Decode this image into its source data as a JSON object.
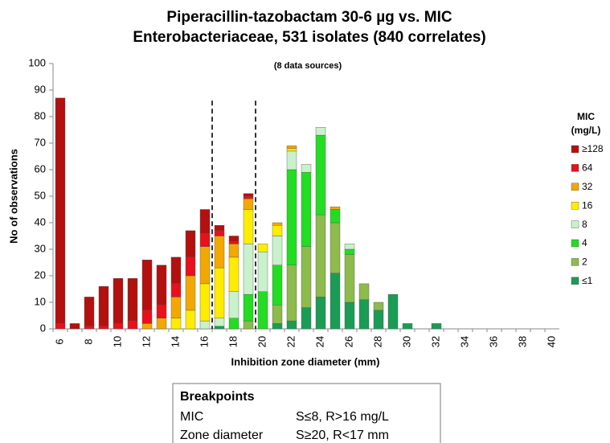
{
  "chart_data": {
    "type": "stacked_bar",
    "title": [
      "Piperacillin-tazobactam 30-6 µg vs. MIC",
      "Enterobacteriaceae, 531 isolates (840 correlates)"
    ],
    "subtitle": "(8 data sources)",
    "x_label": "Inhibition zone diameter (mm)",
    "y_label": "No of observations",
    "legend_title": [
      "MIC",
      "(mg/L)"
    ],
    "categories": [
      6,
      null,
      8,
      null,
      10,
      null,
      12,
      null,
      14,
      null,
      16,
      null,
      18,
      null,
      20,
      null,
      22,
      null,
      24,
      null,
      26,
      null,
      28,
      null,
      30,
      null,
      32,
      null,
      34,
      null,
      36,
      null,
      38,
      null,
      40
    ],
    "series": [
      {
        "name": "≤1",
        "color": "#1a9c55",
        "values": [
          0,
          0,
          0,
          0,
          0,
          0,
          0,
          0,
          0,
          0,
          0,
          1,
          0,
          0,
          0,
          2,
          3,
          8,
          12,
          21,
          10,
          11,
          7,
          13,
          2,
          0,
          2,
          0,
          0,
          0,
          0,
          0,
          0,
          0,
          0
        ]
      },
      {
        "name": "2",
        "color": "#8dbb4c",
        "values": [
          0,
          0,
          0,
          0,
          0,
          0,
          0,
          0,
          0,
          0,
          0,
          0,
          0,
          3,
          0,
          7,
          21,
          23,
          31,
          19,
          18,
          6,
          3,
          0,
          0,
          0,
          0,
          0,
          0,
          0,
          0,
          0,
          0,
          0,
          0
        ]
      },
      {
        "name": "4",
        "color": "#22dd22",
        "values": [
          0,
          0,
          0,
          0,
          0,
          0,
          0,
          0,
          0,
          0,
          0,
          0,
          4,
          10,
          14,
          15,
          36,
          28,
          30,
          5,
          2,
          0,
          0,
          0,
          0,
          0,
          0,
          0,
          0,
          0,
          0,
          0,
          0,
          0,
          0
        ]
      },
      {
        "name": "8",
        "color": "#c9f1cc",
        "values": [
          0,
          0,
          0,
          0,
          0,
          0,
          0,
          0,
          0,
          0,
          3,
          3,
          10,
          19,
          15,
          11,
          7,
          3,
          3,
          0,
          2,
          0,
          0,
          0,
          0,
          0,
          0,
          0,
          0,
          0,
          0,
          0,
          0,
          0,
          0
        ]
      },
      {
        "name": "16",
        "color": "#ffec00",
        "values": [
          0,
          0,
          0,
          0,
          0,
          0,
          0,
          0,
          4,
          7,
          14,
          19,
          13,
          13,
          3,
          4,
          1,
          0,
          0,
          0,
          0,
          0,
          0,
          0,
          0,
          0,
          0,
          0,
          0,
          0,
          0,
          0,
          0,
          0,
          0
        ]
      },
      {
        "name": "32",
        "color": "#f2a800",
        "values": [
          0,
          0,
          0,
          0,
          0,
          0,
          2,
          4,
          8,
          13,
          14,
          12,
          5,
          4,
          0,
          1,
          1,
          0,
          0,
          1,
          0,
          0,
          0,
          0,
          0,
          0,
          0,
          0,
          0,
          0,
          0,
          0,
          0,
          0,
          0
        ]
      },
      {
        "name": "64",
        "color": "#e8101a",
        "values": [
          2,
          0,
          1,
          1,
          2,
          3,
          5,
          5,
          5,
          7,
          5,
          2,
          1,
          1,
          0,
          0,
          0,
          0,
          0,
          0,
          0,
          0,
          0,
          0,
          0,
          0,
          0,
          0,
          0,
          0,
          0,
          0,
          0,
          0,
          0
        ]
      },
      {
        "name": "≥128",
        "color": "#b3100f",
        "values": [
          85,
          2,
          11,
          15,
          17,
          16,
          19,
          15,
          10,
          10,
          9,
          2,
          2,
          1,
          0,
          0,
          0,
          0,
          0,
          0,
          0,
          0,
          0,
          0,
          0,
          0,
          0,
          0,
          0,
          0,
          0,
          0,
          0,
          0,
          0
        ]
      }
    ],
    "reference_lines": [
      16.5,
      19.5
    ],
    "ylim": [
      0,
      100
    ],
    "yticks": [
      0,
      10,
      20,
      30,
      40,
      50,
      60,
      70,
      80,
      90,
      100
    ],
    "breakpoints": {
      "title": "Breakpoints",
      "rows": [
        [
          "MIC",
          "S≤8, R>16 mg/L"
        ],
        [
          "Zone diameter",
          "S≥20, R<17 mm"
        ]
      ]
    }
  }
}
